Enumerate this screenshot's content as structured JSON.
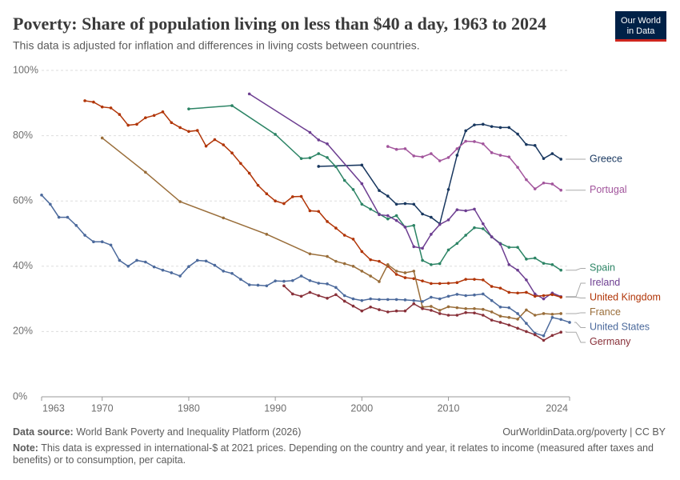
{
  "chart_data": {
    "type": "line",
    "title": "Poverty: Share of population living on less than $40 a day, 1963 to 2024",
    "subtitle": "This data is adjusted for inflation and differences in living costs between countries.",
    "logo": [
      "Our World",
      "in Data"
    ],
    "source_label": "Data source:",
    "source": "World Bank Poverty and Inequality Platform (2026)",
    "url": "OurWorldinData.org/poverty | CC BY",
    "note_label": "Note:",
    "note": "This data is expressed in international-$ at 2021 prices. Depending on the country and year, it relates to income (measured after taxes and benefits) or to consumption, per capita.",
    "xlim": [
      1963,
      2024
    ],
    "xticks": [
      1963,
      1970,
      1980,
      1990,
      2000,
      2010,
      2024
    ],
    "ylim": [
      0,
      100
    ],
    "yticks": [
      {
        "value": 0,
        "label": "0%"
      },
      {
        "value": 20,
        "label": "20%"
      },
      {
        "value": 40,
        "label": "40%"
      },
      {
        "value": 60,
        "label": "60%"
      },
      {
        "value": 80,
        "label": "80%"
      },
      {
        "value": 100,
        "label": "100%"
      }
    ],
    "grid": true,
    "series": [
      {
        "name": "Greece",
        "color": "#18375f",
        "x": [
          1995,
          2000,
          2002,
          2003,
          2004,
          2005,
          2006,
          2007,
          2008,
          2009,
          2010,
          2011,
          2012,
          2013,
          2014,
          2015,
          2016,
          2017,
          2018,
          2019,
          2020,
          2021,
          2022,
          2023
        ],
        "values": [
          70.6,
          71,
          63.2,
          61.5,
          59,
          59.2,
          59,
          56,
          55,
          53,
          63.5,
          74,
          81.5,
          83.3,
          83.5,
          82.8,
          82.5,
          82.5,
          80.5,
          77.3,
          77,
          73,
          74.5,
          72.8
        ]
      },
      {
        "name": "Portugal",
        "color": "#a2559c",
        "x": [
          2003,
          2004,
          2005,
          2006,
          2007,
          2008,
          2009,
          2010,
          2011,
          2012,
          2013,
          2014,
          2015,
          2016,
          2017,
          2018,
          2019,
          2020,
          2021,
          2022,
          2023
        ],
        "values": [
          76.7,
          75.8,
          76,
          73.8,
          73.5,
          74.5,
          72.3,
          73.3,
          76,
          78.3,
          78.2,
          77.5,
          74.8,
          74,
          73.5,
          70.3,
          66.5,
          63.7,
          65.5,
          65.2,
          63.3
        ]
      },
      {
        "name": "Spain",
        "color": "#2c8465",
        "x": [
          1980,
          1985,
          1990,
          1993,
          1994,
          1995,
          1996,
          1997,
          1998,
          1999,
          2000,
          2001,
          2002,
          2003,
          2004,
          2005,
          2006,
          2007,
          2008,
          2009,
          2010,
          2011,
          2012,
          2013,
          2014,
          2015,
          2016,
          2017,
          2018,
          2019,
          2020,
          2021,
          2022,
          2023
        ],
        "values": [
          88.2,
          89.2,
          80.4,
          73,
          73.2,
          74.5,
          73.3,
          70.5,
          66.3,
          63.5,
          59,
          57.5,
          56,
          54.5,
          55.5,
          52,
          52.5,
          41.8,
          40.5,
          40.8,
          45,
          47,
          49.5,
          51.8,
          51.5,
          49,
          47,
          45.8,
          45.8,
          42.2,
          42.5,
          40.9,
          40.5,
          38.8
        ]
      },
      {
        "name": "Ireland",
        "color": "#6d3e91",
        "x": [
          1987,
          1994,
          1995,
          1996,
          2000,
          2002,
          2003,
          2004,
          2005,
          2006,
          2007,
          2008,
          2009,
          2010,
          2011,
          2012,
          2013,
          2014,
          2015,
          2016,
          2017,
          2018,
          2019,
          2020,
          2021,
          2022,
          2023
        ],
        "values": [
          92.8,
          81,
          78.7,
          77.5,
          65.3,
          55.8,
          55.5,
          54,
          52,
          46,
          45.5,
          49.8,
          52.8,
          54.2,
          57.3,
          57,
          57.5,
          53,
          49,
          46.8,
          40.5,
          38.8,
          35.8,
          31.5,
          30,
          31.8,
          30.7
        ]
      },
      {
        "name": "United Kingdom",
        "color": "#b13507",
        "x": [
          1968,
          1969,
          1970,
          1971,
          1972,
          1973,
          1974,
          1975,
          1976,
          1977,
          1978,
          1979,
          1980,
          1981,
          1982,
          1983,
          1984,
          1985,
          1986,
          1987,
          1988,
          1989,
          1990,
          1991,
          1992,
          1993,
          1994,
          1995,
          1996,
          1997,
          1998,
          1999,
          2000,
          2001,
          2002,
          2003,
          2004,
          2005,
          2006,
          2007,
          2008,
          2009,
          2010,
          2011,
          2012,
          2013,
          2014,
          2015,
          2016,
          2017,
          2018,
          2019,
          2020,
          2021,
          2022,
          2023
        ],
        "values": [
          90.7,
          90.3,
          88.8,
          88.5,
          86.5,
          83.2,
          83.5,
          85.5,
          86.2,
          87.3,
          84,
          82.5,
          81.3,
          81.6,
          76.8,
          78.8,
          77.2,
          74.7,
          71.5,
          68.5,
          64.8,
          62.2,
          60,
          59.2,
          61.3,
          61.4,
          57,
          56.8,
          53.7,
          51.7,
          49.5,
          48.3,
          44.5,
          42,
          41.5,
          40,
          37.5,
          36.5,
          36.2,
          35.5,
          34.7,
          34.7,
          34.8,
          35,
          36,
          36,
          35.8,
          33.8,
          33.3,
          32,
          31.8,
          32,
          30.8,
          31,
          31.3,
          30.5
        ]
      },
      {
        "name": "France",
        "color": "#996d39",
        "x": [
          1970,
          1975,
          1979,
          1984,
          1989,
          1994,
          1996,
          1997,
          1998,
          1999,
          2000,
          2001,
          2002,
          2003,
          2004,
          2005,
          2006,
          2007,
          2008,
          2009,
          2010,
          2011,
          2012,
          2013,
          2014,
          2015,
          2016,
          2017,
          2018,
          2019,
          2020,
          2021,
          2022,
          2023
        ],
        "values": [
          79.3,
          68.8,
          59.8,
          54.8,
          49.8,
          43.8,
          43,
          41.5,
          40.8,
          40,
          38.5,
          37,
          35.3,
          40.5,
          38.5,
          38,
          38.5,
          27.5,
          27.7,
          26.5,
          27.6,
          27.3,
          27,
          27,
          26.8,
          26,
          24.7,
          24.3,
          23.8,
          26.6,
          25,
          25.5,
          25.3,
          25.5
        ]
      },
      {
        "name": "United States",
        "color": "#4c6a9c",
        "x": [
          1963,
          1964,
          1965,
          1966,
          1967,
          1968,
          1969,
          1970,
          1971,
          1972,
          1973,
          1974,
          1975,
          1976,
          1977,
          1978,
          1979,
          1980,
          1981,
          1982,
          1983,
          1984,
          1985,
          1986,
          1987,
          1988,
          1989,
          1990,
          1991,
          1992,
          1993,
          1994,
          1995,
          1996,
          1997,
          1998,
          1999,
          2000,
          2001,
          2002,
          2003,
          2004,
          2005,
          2006,
          2007,
          2008,
          2009,
          2010,
          2011,
          2012,
          2013,
          2014,
          2015,
          2016,
          2017,
          2018,
          2019,
          2020,
          2021,
          2022,
          2023,
          2024
        ],
        "values": [
          61.8,
          59,
          55,
          55,
          52.5,
          49.5,
          47.5,
          47.5,
          46.5,
          41.8,
          40,
          41.8,
          41.3,
          39.8,
          38.8,
          38,
          37,
          39.9,
          41.8,
          41.6,
          40.3,
          38.5,
          37.8,
          36,
          34.3,
          34.2,
          34,
          35.5,
          35.4,
          35.6,
          37,
          35.6,
          34.8,
          34.6,
          33.5,
          31,
          30,
          29.5,
          30,
          29.8,
          29.8,
          29.8,
          29.7,
          29.5,
          29.2,
          30.5,
          30,
          30.8,
          31.4,
          31,
          31.2,
          31.5,
          29.5,
          27.5,
          27.3,
          25.5,
          22.5,
          19.5,
          18.7,
          24.3,
          23.7,
          22.8
        ]
      },
      {
        "name": "Germany",
        "color": "#883039",
        "x": [
          1991,
          1992,
          1993,
          1994,
          1995,
          1996,
          1997,
          1998,
          1999,
          2000,
          2001,
          2002,
          2003,
          2004,
          2005,
          2006,
          2007,
          2008,
          2009,
          2010,
          2011,
          2012,
          2013,
          2014,
          2015,
          2016,
          2017,
          2018,
          2019,
          2020,
          2021,
          2022,
          2023
        ],
        "values": [
          34,
          31.5,
          30.8,
          32,
          31,
          30.2,
          31.3,
          29.3,
          27.8,
          26.3,
          27.5,
          26.7,
          26,
          26.3,
          26.3,
          28.5,
          27,
          26.5,
          25.5,
          25,
          25,
          25.8,
          25.7,
          25,
          23.5,
          22.8,
          22,
          21,
          20,
          19,
          17.3,
          18.8,
          19.8
        ]
      }
    ]
  }
}
